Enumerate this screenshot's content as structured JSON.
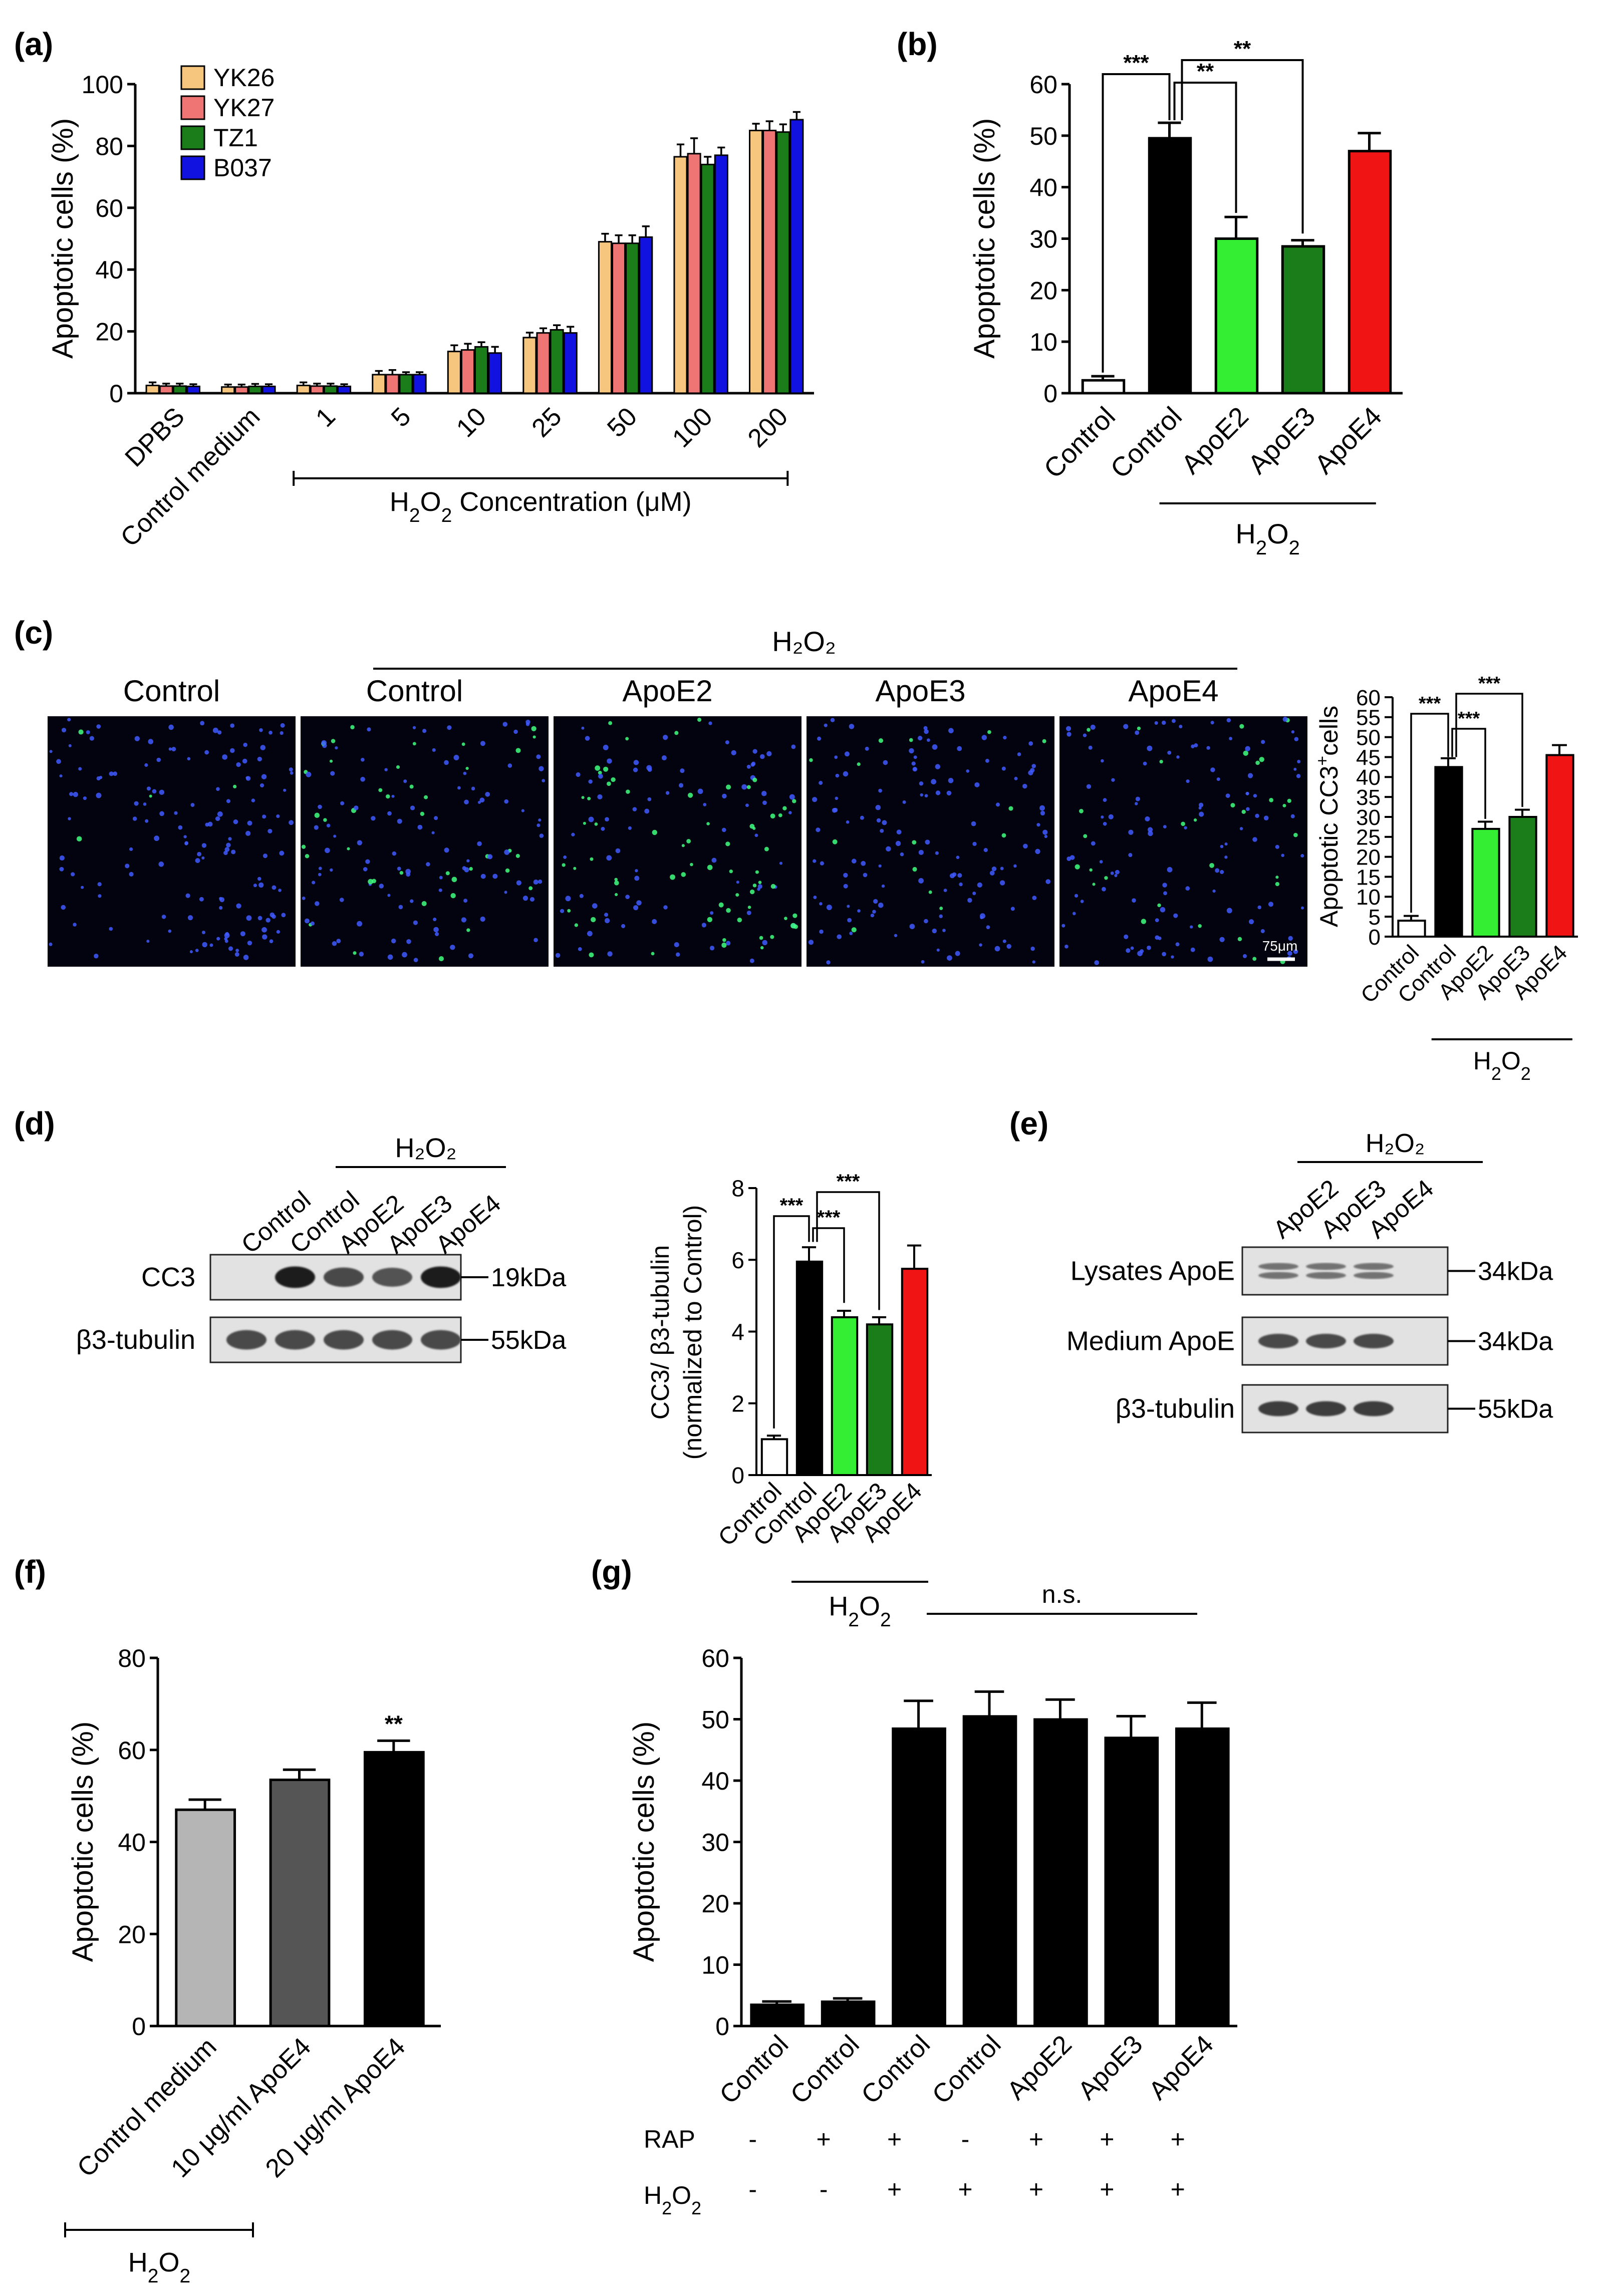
{
  "colors": {
    "yk26": "#f7c67e",
    "yk27": "#ef7474",
    "tz1": "#1a7d1a",
    "b037": "#1212e0",
    "white_bar": "#ffffff",
    "black_bar": "#000000",
    "apoe2": "#33ee33",
    "apoe3": "#1a7d1a",
    "apoe4": "#f01414",
    "f_light": "#b5b5b5",
    "f_mid": "#555555",
    "f_dark": "#000000",
    "micro_bg": "#03030f",
    "micro_blue": "#3f5bff",
    "micro_green": "#3fff7f"
  },
  "panel_labels": {
    "a": "(a)",
    "b": "(b)",
    "c": "(c)",
    "d": "(d)",
    "e": "(e)",
    "f": "(f)",
    "g": "(g)"
  },
  "chart_data": [
    {
      "id": "a",
      "type": "bar",
      "ylabel": "Apoptotic cells (%)",
      "ylim": [
        0,
        100
      ],
      "yticks": [
        0,
        20,
        40,
        60,
        80,
        100
      ],
      "categories": [
        "DPBS",
        "Control medium",
        "1",
        "5",
        "10",
        "25",
        "50",
        "100",
        "200"
      ],
      "xgroup": {
        "label": "H",
        "sub1": "2",
        "mid": "O",
        "sub2": "2",
        "tail": " Concentration (μM)"
      },
      "legend_position": "top-left",
      "series": [
        {
          "name": "YK26",
          "color_key": "yk26",
          "values": [
            2.5,
            2,
            2.5,
            6,
            13.5,
            18,
            49,
            76.5,
            85
          ],
          "errors": [
            1,
            0.8,
            1,
            1.2,
            2,
            1.6,
            2.6,
            4,
            2.2
          ]
        },
        {
          "name": "YK27",
          "color_key": "yk27",
          "values": [
            2.3,
            2,
            2.3,
            6,
            14,
            19.5,
            48.5,
            77.5,
            85
          ],
          "errors": [
            0.8,
            0.8,
            0.8,
            1.5,
            2,
            1.5,
            2.6,
            5,
            3
          ]
        },
        {
          "name": "TZ1",
          "color_key": "tz1",
          "values": [
            2.3,
            2.2,
            2.3,
            6,
            15,
            20.5,
            48.5,
            74,
            84.5
          ],
          "errors": [
            0.8,
            0.8,
            0.8,
            0.8,
            1.5,
            1.5,
            2.6,
            2.5,
            2.5
          ]
        },
        {
          "name": "B037",
          "color_key": "b037",
          "values": [
            2.2,
            2.2,
            2.2,
            6,
            13,
            19.5,
            50.5,
            77,
            88.5
          ],
          "errors": [
            0.7,
            0.7,
            0.7,
            0.8,
            2,
            2,
            3.5,
            2.5,
            2.5
          ]
        }
      ]
    },
    {
      "id": "b",
      "type": "bar",
      "ylabel": "Apoptotic cells (%)",
      "ylim": [
        0,
        60
      ],
      "yticks": [
        0,
        10,
        20,
        30,
        40,
        50,
        60
      ],
      "categories": [
        "Control",
        "Control",
        "ApoE2",
        "ApoE3",
        "ApoE4"
      ],
      "values": [
        2.5,
        49.5,
        30,
        28.5,
        47
      ],
      "errors": [
        0.8,
        3,
        4.2,
        1.2,
        3.5
      ],
      "color_keys": [
        "white_bar",
        "black_bar",
        "apoe2",
        "apoe3",
        "apoe4"
      ],
      "xgroup": {
        "label": "H",
        "sub1": "2",
        "mid": "O",
        "sub2": "2",
        "tail": ""
      },
      "significance": [
        "***",
        "**",
        "**"
      ]
    },
    {
      "id": "c",
      "type": "bar",
      "ylabel": "Apoptotic CC3",
      "ylabel_sup": "+",
      "ylabel_tail": "cells",
      "ylim": [
        0,
        60
      ],
      "yticks": [
        0,
        5,
        10,
        15,
        20,
        25,
        30,
        35,
        40,
        45,
        50,
        55,
        60
      ],
      "categories": [
        "Control",
        "Control",
        "ApoE2",
        "ApoE3",
        "ApoE4"
      ],
      "values": [
        4,
        42.5,
        27,
        30,
        45.5
      ],
      "errors": [
        1.2,
        2.2,
        1.8,
        1.8,
        2.5
      ],
      "color_keys": [
        "white_bar",
        "black_bar",
        "apoe2",
        "apoe3",
        "apoe4"
      ],
      "xgroup": {
        "label": "H",
        "sub1": "2",
        "mid": "O",
        "sub2": "2",
        "tail": ""
      },
      "significance": [
        "***",
        "***",
        "***"
      ]
    },
    {
      "id": "d",
      "type": "bar",
      "ylabel": "CC3/ β3-tubulin",
      "ylabel2": "(normalized to Control)",
      "ylim": [
        0,
        8
      ],
      "yticks": [
        0,
        2,
        4,
        6,
        8
      ],
      "categories": [
        "Control",
        "Control",
        "ApoE2",
        "ApoE3",
        "ApoE4"
      ],
      "values": [
        1,
        5.95,
        4.4,
        4.2,
        5.75
      ],
      "errors": [
        0.1,
        0.4,
        0.18,
        0.2,
        0.65
      ],
      "color_keys": [
        "white_bar",
        "black_bar",
        "apoe2",
        "apoe3",
        "apoe4"
      ],
      "xgroup": {
        "label": "H",
        "sub1": "2",
        "mid": "O",
        "sub2": "2",
        "tail": ""
      },
      "significance": [
        "***",
        "***",
        "***"
      ]
    },
    {
      "id": "f",
      "type": "bar",
      "ylabel": "Apoptotic cells (%)",
      "ylim": [
        0,
        80
      ],
      "yticks": [
        0,
        20,
        40,
        60,
        80
      ],
      "categories": [
        "Control medium",
        "10 μg/ml ApoE4",
        "20 μg/ml ApoE4"
      ],
      "values": [
        47,
        53.5,
        59.5
      ],
      "errors": [
        2.2,
        2.2,
        2.5
      ],
      "color_keys": [
        "f_light",
        "f_mid",
        "f_dark"
      ],
      "xgroup": {
        "label": "H",
        "sub1": "2",
        "mid": "O",
        "sub2": "2",
        "tail": ""
      },
      "significance": [
        "**"
      ]
    },
    {
      "id": "g",
      "type": "bar",
      "ylabel": "Apoptotic cells (%)",
      "ylim": [
        0,
        60
      ],
      "yticks": [
        0,
        10,
        20,
        30,
        40,
        50,
        60
      ],
      "categories": [
        "Control",
        "Control",
        "Control",
        "Control",
        "ApoE2",
        "ApoE3",
        "ApoE4"
      ],
      "values": [
        3.5,
        4,
        48.5,
        50.5,
        50,
        47,
        48.5
      ],
      "errors": [
        0.5,
        0.5,
        4.5,
        4,
        3.2,
        3.5,
        4.2
      ],
      "significance": [
        "n.s."
      ],
      "treatments": [
        {
          "label": "RAP",
          "marks": [
            "-",
            "+",
            "+",
            "-",
            "+",
            "+",
            "+"
          ]
        },
        {
          "label": "H",
          "sub": "2",
          "mid": "O",
          "sub2": "2",
          "marks": [
            "-",
            "-",
            "+",
            "+",
            "+",
            "+",
            "+"
          ]
        }
      ]
    }
  ],
  "micrographs": {
    "group_label": "H₂O₂",
    "titles": [
      "Control",
      "Control",
      "ApoE2",
      "ApoE3",
      "ApoE4"
    ],
    "green_density": [
      0.02,
      0.25,
      0.45,
      0.12,
      0.2
    ],
    "scale_bar": "75μm"
  },
  "blot_d": {
    "group_label": "H₂O₂",
    "lanes": [
      "Control",
      "Control",
      "ApoE2",
      "ApoE3",
      "ApoE4"
    ],
    "rows": [
      {
        "label": "CC3",
        "size": "19kDa",
        "intensity": [
          0,
          0.95,
          0.75,
          0.7,
          0.95
        ]
      },
      {
        "label": "β3-tubulin",
        "size": "55kDa",
        "intensity": [
          0.75,
          0.75,
          0.75,
          0.75,
          0.75
        ]
      }
    ]
  },
  "blot_e": {
    "group_label": "H₂O₂",
    "lanes": [
      "ApoE2",
      "ApoE3",
      "ApoE4"
    ],
    "rows": [
      {
        "label": "Lysates ApoE",
        "size": "34kDa",
        "intensity": [
          0.55,
          0.55,
          0.55
        ]
      },
      {
        "label": "Medium ApoE",
        "size": "34kDa",
        "intensity": [
          0.75,
          0.75,
          0.75
        ]
      },
      {
        "label": "β3-tubulin",
        "size": "55kDa",
        "intensity": [
          0.8,
          0.8,
          0.8
        ]
      }
    ]
  }
}
